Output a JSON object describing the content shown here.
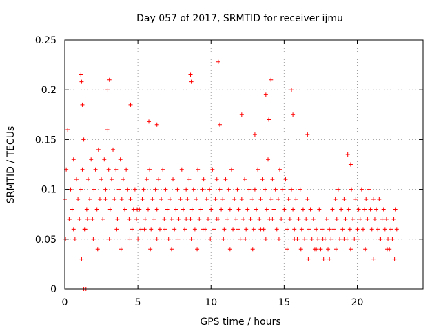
{
  "chart_data": {
    "type": "scatter",
    "title": "Day 057 of 2017, SRMTID for receiver ijmu",
    "xlabel": "GPS time / hours",
    "ylabel": "SRMTID / TECUs",
    "xlim": [
      0,
      24.5
    ],
    "ylim": [
      0,
      0.25
    ],
    "x_ticks": [
      0,
      5,
      10,
      15,
      20
    ],
    "y_ticks": [
      0,
      0.05,
      0.1,
      0.15,
      0.2,
      0.25
    ],
    "x_tick_labels": [
      "0",
      "5",
      "10",
      "15",
      "20"
    ],
    "y_tick_labels": [
      "0",
      "0.05",
      "0.1",
      "0.15",
      "0.2",
      "0.25"
    ],
    "grid": true,
    "marker": "+",
    "color": "#ff0000",
    "series": [
      {
        "name": "SRMTID",
        "x": [
          0.0,
          0.1,
          0.2,
          0.3,
          0.4,
          0.5,
          0.6,
          0.7,
          0.8,
          0.9,
          1.0,
          1.1,
          1.2,
          1.3,
          1.4,
          1.5,
          1.6,
          1.7,
          1.8,
          1.9,
          2.0,
          2.1,
          2.2,
          2.3,
          2.4,
          2.5,
          2.6,
          2.7,
          2.8,
          2.9,
          3.0,
          3.1,
          3.2,
          3.3,
          3.4,
          3.5,
          3.6,
          3.7,
          3.8,
          3.9,
          4.0,
          4.1,
          4.2,
          4.3,
          4.4,
          4.5,
          4.6,
          4.7,
          4.8,
          4.9,
          5.0,
          5.1,
          5.2,
          5.3,
          5.4,
          5.5,
          5.6,
          5.7,
          5.8,
          5.9,
          6.0,
          6.1,
          6.2,
          6.3,
          6.4,
          6.5,
          6.6,
          6.7,
          6.8,
          6.9,
          7.0,
          7.1,
          7.2,
          7.3,
          7.4,
          7.5,
          7.6,
          7.7,
          7.8,
          7.9,
          8.0,
          8.1,
          8.2,
          8.3,
          8.4,
          8.5,
          8.6,
          8.7,
          8.8,
          8.9,
          9.0,
          9.1,
          9.2,
          9.3,
          9.4,
          9.5,
          9.6,
          9.7,
          9.8,
          9.9,
          10.0,
          10.1,
          10.2,
          10.3,
          10.4,
          10.5,
          10.6,
          10.7,
          10.8,
          10.9,
          11.0,
          11.1,
          11.2,
          11.3,
          11.4,
          11.5,
          11.6,
          11.7,
          11.8,
          11.9,
          12.0,
          12.1,
          12.2,
          12.3,
          12.4,
          12.5,
          12.6,
          12.7,
          12.8,
          12.9,
          13.0,
          13.1,
          13.2,
          13.3,
          13.4,
          13.5,
          13.6,
          13.7,
          13.8,
          13.9,
          14.0,
          14.1,
          14.2,
          14.3,
          14.4,
          14.5,
          14.6,
          14.7,
          14.8,
          14.9,
          15.0,
          15.1,
          15.2,
          15.3,
          15.4,
          15.5,
          15.6,
          15.7,
          15.8,
          15.9,
          16.0,
          16.1,
          16.2,
          16.3,
          16.4,
          16.5,
          16.6,
          16.7,
          16.8,
          16.9,
          17.0,
          17.1,
          17.2,
          17.3,
          17.4,
          17.5,
          17.6,
          17.7,
          17.8,
          17.9,
          18.0,
          18.1,
          18.2,
          18.3,
          18.4,
          18.5,
          18.6,
          18.7,
          18.8,
          18.9,
          19.0,
          19.1,
          19.2,
          19.3,
          19.4,
          19.5,
          19.6,
          19.7,
          19.8,
          19.9,
          20.0,
          20.1,
          20.2,
          20.3,
          20.4,
          20.5,
          20.6,
          20.7,
          20.8,
          20.9,
          21.0,
          21.1,
          21.2,
          21.3,
          21.4,
          21.5,
          21.6,
          21.7,
          21.8,
          21.9,
          22.0,
          22.1,
          22.2,
          22.3,
          22.4,
          22.5,
          22.6,
          22.7,
          0.05,
          0.35,
          0.6,
          1.15,
          1.35,
          1.55,
          1.95,
          2.25,
          2.8,
          3.05,
          3.55,
          3.85,
          4.45,
          4.95,
          5.45,
          5.85,
          6.3,
          6.85,
          7.3,
          7.75,
          8.3,
          8.65,
          9.05,
          9.45,
          9.95,
          10.4,
          10.85,
          11.3,
          11.85,
          12.35,
          12.85,
          13.4,
          13.75,
          14.2,
          14.65,
          15.2,
          15.7,
          16.15,
          16.65,
          17.2,
          17.65,
          18.1,
          18.55,
          19.1,
          19.55,
          20.05,
          20.55,
          21.1,
          21.55,
          22.05,
          22.55,
          1.1,
          1.15,
          1.2,
          2.9,
          3.05,
          4.5,
          5.75,
          6.3,
          8.6,
          8.65,
          10.5,
          10.6,
          12.1,
          13.0,
          13.75,
          13.95,
          14.1,
          15.5,
          15.6,
          16.6,
          19.35,
          19.55,
          1.3,
          1.45
        ],
        "y": [
          0.09,
          0.12,
          0.16,
          0.07,
          0.1,
          0.08,
          0.13,
          0.05,
          0.11,
          0.09,
          0.07,
          0.1,
          0.12,
          0.15,
          0.06,
          0.08,
          0.11,
          0.09,
          0.13,
          0.07,
          0.1,
          0.12,
          0.08,
          0.14,
          0.09,
          0.11,
          0.07,
          0.13,
          0.1,
          0.16,
          0.12,
          0.08,
          0.11,
          0.14,
          0.09,
          0.12,
          0.07,
          0.1,
          0.13,
          0.09,
          0.11,
          0.08,
          0.12,
          0.1,
          0.07,
          0.09,
          0.06,
          0.08,
          0.1,
          0.07,
          0.05,
          0.08,
          0.06,
          0.09,
          0.1,
          0.07,
          0.11,
          0.08,
          0.12,
          0.06,
          0.09,
          0.07,
          0.1,
          0.08,
          0.11,
          0.06,
          0.09,
          0.12,
          0.07,
          0.1,
          0.08,
          0.05,
          0.09,
          0.07,
          0.11,
          0.06,
          0.08,
          0.1,
          0.07,
          0.09,
          0.12,
          0.08,
          0.06,
          0.1,
          0.09,
          0.11,
          0.07,
          0.08,
          0.1,
          0.06,
          0.09,
          0.12,
          0.07,
          0.08,
          0.1,
          0.11,
          0.06,
          0.09,
          0.07,
          0.1,
          0.08,
          0.12,
          0.06,
          0.09,
          0.11,
          0.07,
          0.1,
          0.08,
          0.09,
          0.06,
          0.11,
          0.07,
          0.1,
          0.08,
          0.12,
          0.06,
          0.09,
          0.07,
          0.1,
          0.08,
          0.05,
          0.09,
          0.07,
          0.11,
          0.06,
          0.08,
          0.1,
          0.07,
          0.09,
          0.06,
          0.1,
          0.08,
          0.12,
          0.07,
          0.09,
          0.11,
          0.06,
          0.1,
          0.08,
          0.13,
          0.07,
          0.09,
          0.11,
          0.08,
          0.1,
          0.06,
          0.09,
          0.12,
          0.07,
          0.1,
          0.08,
          0.11,
          0.06,
          0.09,
          0.07,
          0.1,
          0.08,
          0.06,
          0.09,
          0.05,
          0.07,
          0.1,
          0.06,
          0.08,
          0.05,
          0.07,
          0.09,
          0.06,
          0.08,
          0.05,
          0.07,
          0.04,
          0.06,
          0.05,
          0.08,
          0.04,
          0.06,
          0.03,
          0.05,
          0.07,
          0.04,
          0.06,
          0.05,
          0.08,
          0.06,
          0.09,
          0.07,
          0.1,
          0.05,
          0.08,
          0.06,
          0.09,
          0.07,
          0.05,
          0.08,
          0.06,
          0.1,
          0.07,
          0.05,
          0.09,
          0.06,
          0.08,
          0.07,
          0.1,
          0.06,
          0.08,
          0.09,
          0.07,
          0.1,
          0.08,
          0.06,
          0.09,
          0.07,
          0.08,
          0.06,
          0.09,
          0.05,
          0.07,
          0.08,
          0.06,
          0.07,
          0.05,
          0.04,
          0.06,
          0.05,
          0.07,
          0.08,
          0.06,
          0.05,
          0.07,
          0.06,
          0.03,
          0.06,
          0.07,
          0.05,
          0.04,
          0.09,
          0.05,
          0.06,
          0.04,
          0.05,
          0.08,
          0.06,
          0.04,
          0.05,
          0.06,
          0.04,
          0.05,
          0.07,
          0.05,
          0.04,
          0.06,
          0.05,
          0.07,
          0.05,
          0.04,
          0.06,
          0.05,
          0.04,
          0.06,
          0.05,
          0.07,
          0.05,
          0.04,
          0.05,
          0.04,
          0.03,
          0.04,
          0.05,
          0.03,
          0.04,
          0.05,
          0.04,
          0.05,
          0.04,
          0.03,
          0.05,
          0.04,
          0.03,
          0.215,
          0.208,
          0.185,
          0.2,
          0.21,
          0.185,
          0.168,
          0.165,
          0.215,
          0.208,
          0.228,
          0.165,
          0.175,
          0.155,
          0.195,
          0.17,
          0.21,
          0.2,
          0.175,
          0.155,
          0.135,
          0.125,
          0.0,
          0.0
        ]
      }
    ]
  }
}
